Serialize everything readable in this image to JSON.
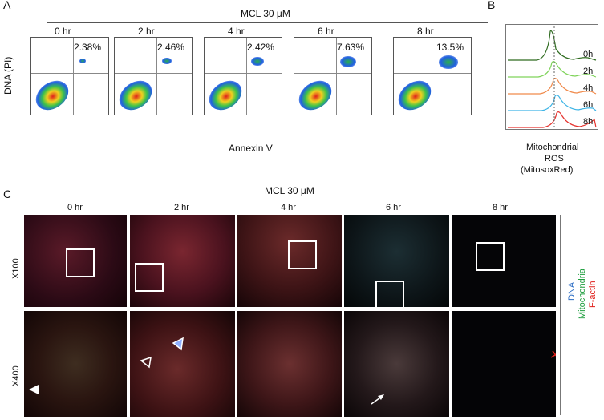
{
  "panels": {
    "a": "A",
    "b": "B",
    "c": "C"
  },
  "treatment": "MCL 30 μM",
  "flow": {
    "ylabel": "DNA (PI)",
    "xlabel": "Annexin V",
    "timepoints": [
      "0 hr",
      "2 hr",
      "4 hr",
      "6 hr",
      "8 hr"
    ],
    "q2_percent": [
      "2.38%",
      "2.46%",
      "2.42%",
      "7.63%",
      "13.5%"
    ]
  },
  "ros": {
    "title_lines": [
      "Mitochondrial",
      "ROS",
      "(MitosoxRed)"
    ],
    "traces": [
      {
        "label": "0h",
        "color": "#2e6b1f"
      },
      {
        "label": "2h",
        "color": "#7fd35a"
      },
      {
        "label": "4h",
        "color": "#f08a4b"
      },
      {
        "label": "6h",
        "color": "#3fb5e6"
      },
      {
        "label": "8h",
        "color": "#e5322d"
      }
    ]
  },
  "micro": {
    "timepoints": [
      "0 hr",
      "2 hr",
      "4 hr",
      "6 hr",
      "8 hr"
    ],
    "row_labels": [
      "X100",
      "X400"
    ],
    "legend": [
      {
        "text": "F-actin",
        "color": "#e0201b"
      },
      {
        "text": "Mitochondria",
        "color": "#1e9e3e"
      },
      {
        "text": "DNA",
        "color": "#2b6cc4"
      }
    ]
  }
}
